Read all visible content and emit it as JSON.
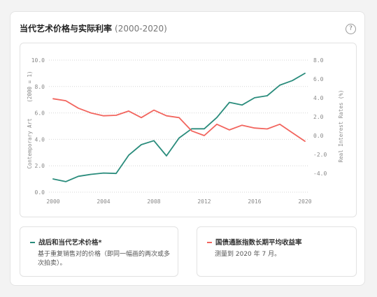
{
  "header": {
    "title": "当代艺术价格与实际利率",
    "range": "(2000-2020)",
    "help_icon": "?"
  },
  "legend": {
    "items": [
      {
        "title": "战后和当代艺术价格*",
        "description": "基于重复销售对的价格（即同一幅画的两次或多次拍卖）。",
        "color": "#2a8c7c"
      },
      {
        "title": "国债通胀指数长期平均收益率",
        "description": "测量到 2020 年 7 月。",
        "color": "#f2655e"
      }
    ]
  },
  "chart_data": {
    "type": "line",
    "x": [
      2000,
      2001,
      2002,
      2003,
      2004,
      2005,
      2006,
      2007,
      2008,
      2009,
      2010,
      2011,
      2012,
      2013,
      2014,
      2015,
      2016,
      2017,
      2018,
      2019,
      2020
    ],
    "series": [
      {
        "name": "战后和当代艺术价格*",
        "axis": "left",
        "color": "#2a8c7c",
        "values": [
          1.0,
          0.8,
          1.2,
          1.35,
          1.45,
          1.42,
          2.8,
          3.6,
          3.9,
          2.75,
          4.1,
          4.8,
          4.8,
          5.65,
          6.8,
          6.6,
          7.15,
          7.3,
          8.1,
          8.45,
          9.0
        ]
      },
      {
        "name": "国债通胀指数长期平均收益率",
        "axis": "right",
        "color": "#f2655e",
        "values": [
          3.9,
          3.7,
          2.9,
          2.4,
          2.1,
          2.15,
          2.6,
          1.9,
          2.7,
          2.1,
          1.9,
          0.5,
          0.0,
          1.2,
          0.6,
          1.1,
          0.8,
          0.7,
          1.2,
          0.3,
          -0.6
        ]
      }
    ],
    "left_axis": {
      "label": "Contemporary Art",
      "note": "(2000 = 1)",
      "ylim": [
        0,
        10
      ],
      "ticks": [
        0,
        2,
        4,
        6,
        8,
        10
      ],
      "tick_labels": [
        "0.0",
        "2.0",
        "4.0",
        "6.0",
        "8.0",
        "10.0"
      ]
    },
    "right_axis": {
      "label": "Real Interest Rates (%)",
      "ylim": [
        -6,
        8
      ],
      "ticks": [
        -4,
        -2,
        0,
        2,
        4,
        6,
        8
      ],
      "tick_labels": [
        "-4.0",
        "-2.0",
        "0.0",
        "2.0",
        "4.0",
        "6.0",
        "8.0"
      ]
    },
    "x_axis": {
      "ticks": [
        2000,
        2004,
        2008,
        2012,
        2016,
        2020
      ],
      "tick_labels": [
        "2000",
        "2004",
        "2008",
        "2012",
        "2016",
        "2020"
      ]
    },
    "grid": "horizontal dotted"
  }
}
